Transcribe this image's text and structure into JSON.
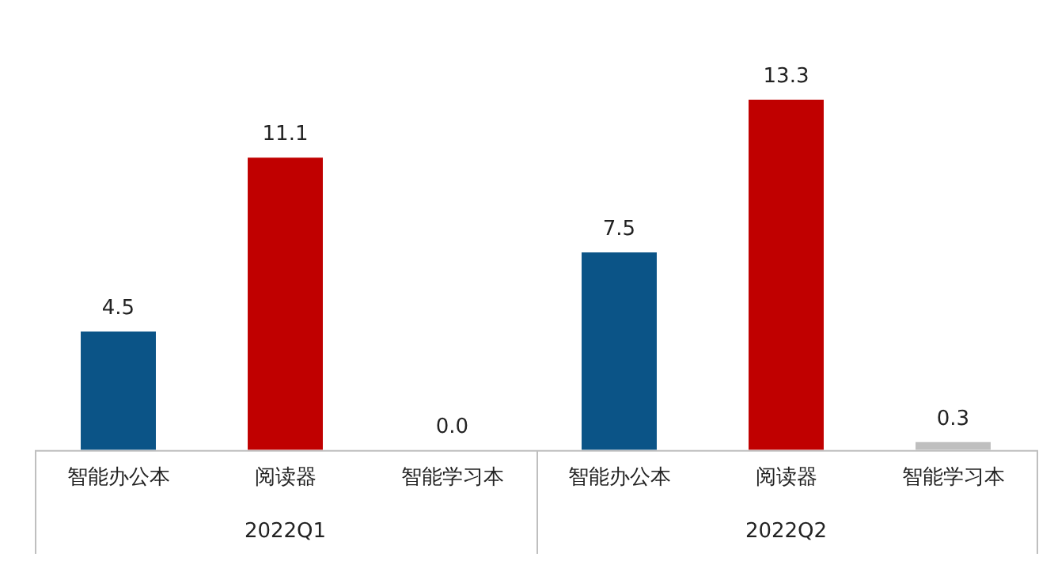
{
  "chart_data": {
    "type": "bar",
    "categories": [
      "智能办公本",
      "阅读器",
      "智能学习本",
      "智能办公本",
      "阅读器",
      "智能学习本"
    ],
    "values": [
      4.5,
      11.1,
      0.0,
      7.5,
      13.3,
      0.3
    ],
    "colors": [
      "#0b5487",
      "#c00000",
      "#bfbfbf",
      "#0b5487",
      "#c00000",
      "#bfbfbf"
    ],
    "value_labels": [
      "4.5",
      "11.1",
      "0.0",
      "7.5",
      "13.3",
      "0.3"
    ],
    "annotations": [
      "2022Q1",
      "2022Q2"
    ],
    "grid": false,
    "legend": false
  }
}
